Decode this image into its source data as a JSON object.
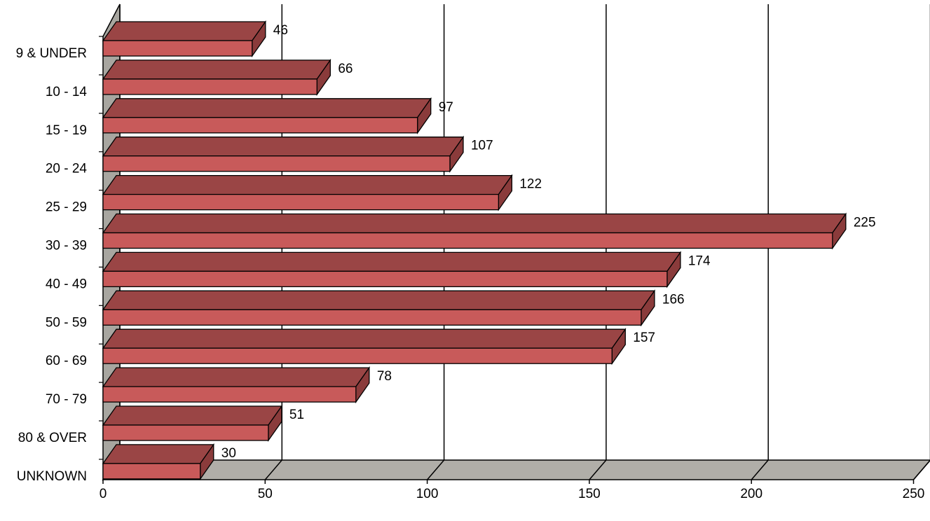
{
  "chart_data": {
    "type": "bar",
    "orientation": "horizontal",
    "three_d": true,
    "categories": [
      "9 & UNDER",
      "10 - 14",
      "15 - 19",
      "20 - 24",
      "25 - 29",
      "30 - 39",
      "40 - 49",
      "50 - 59",
      "60 - 69",
      "70 - 79",
      "80 & OVER",
      "UNKNOWN"
    ],
    "values": [
      46,
      66,
      97,
      107,
      122,
      225,
      174,
      166,
      157,
      78,
      51,
      30
    ],
    "xlim": [
      0,
      250
    ],
    "xticks": [
      "0",
      "50",
      "100",
      "150",
      "200",
      "250"
    ],
    "grid": true,
    "legend": "none",
    "colors": {
      "bar_front": "#c85a5a",
      "bar_top": "#9a4545",
      "bar_side": "#8a3b3b",
      "wall": "#a8a6a0",
      "floor": "#b0aea8"
    }
  }
}
